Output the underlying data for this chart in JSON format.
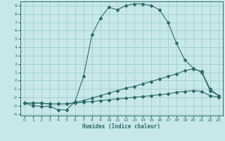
{
  "xlabel": "Humidex (Indice chaleur)",
  "bg_color": "#c8e8e8",
  "grid_color": "#a8d0d0",
  "line_color": "#2d6b6b",
  "xlim": [
    -0.5,
    23.5
  ],
  "ylim": [
    -4.2,
    9.5
  ],
  "x_ticks": [
    0,
    1,
    2,
    3,
    4,
    5,
    6,
    7,
    8,
    9,
    10,
    11,
    12,
    13,
    14,
    15,
    16,
    17,
    18,
    19,
    20,
    21,
    22,
    23
  ],
  "y_ticks": [
    -4,
    -3,
    -2,
    -1,
    0,
    1,
    2,
    3,
    4,
    5,
    6,
    7,
    8,
    9
  ],
  "curve1_x": [
    0,
    1,
    2,
    3,
    4,
    5,
    6,
    7,
    8,
    9,
    10,
    11,
    12,
    13,
    14,
    15,
    16,
    17,
    18,
    19,
    20,
    21,
    22,
    23
  ],
  "curve1_y": [
    -2.7,
    -3.0,
    -3.1,
    -3.1,
    -3.5,
    -3.5,
    -2.5,
    0.5,
    5.5,
    7.5,
    8.8,
    8.5,
    9.0,
    9.2,
    9.2,
    9.0,
    8.5,
    7.0,
    4.5,
    2.5,
    1.5,
    1.0,
    -1.2,
    -1.8
  ],
  "curve2_x": [
    0,
    1,
    2,
    3,
    4,
    5,
    6,
    7,
    8,
    9,
    10,
    11,
    12,
    13,
    14,
    15,
    16,
    17,
    18,
    19,
    20,
    21,
    22,
    23
  ],
  "curve2_y": [
    -2.7,
    -2.7,
    -2.7,
    -2.8,
    -2.8,
    -2.8,
    -2.6,
    -2.4,
    -2.1,
    -1.8,
    -1.5,
    -1.2,
    -0.9,
    -0.7,
    -0.4,
    -0.1,
    0.2,
    0.5,
    0.8,
    1.2,
    1.4,
    1.1,
    -1.0,
    -1.8
  ],
  "curve3_x": [
    0,
    1,
    2,
    3,
    4,
    5,
    6,
    7,
    8,
    9,
    10,
    11,
    12,
    13,
    14,
    15,
    16,
    17,
    18,
    19,
    20,
    21,
    22,
    23
  ],
  "curve3_y": [
    -2.7,
    -2.7,
    -2.7,
    -2.8,
    -2.8,
    -2.8,
    -2.7,
    -2.6,
    -2.5,
    -2.4,
    -2.3,
    -2.2,
    -2.1,
    -2.0,
    -1.9,
    -1.8,
    -1.7,
    -1.6,
    -1.4,
    -1.3,
    -1.2,
    -1.3,
    -1.8,
    -2.0
  ]
}
